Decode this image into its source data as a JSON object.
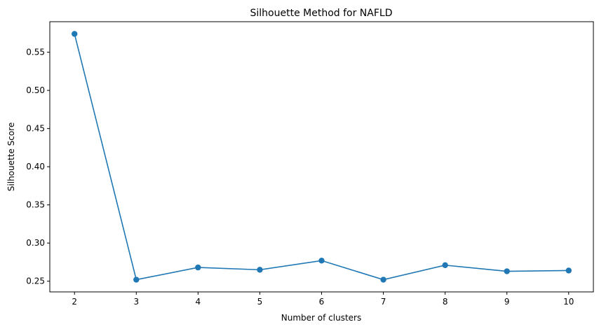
{
  "chart_data": {
    "type": "line",
    "title": "Silhouette Method for NAFLD",
    "xlabel": "Number of clusters",
    "ylabel": "Silhouette Score",
    "x": [
      2,
      3,
      4,
      5,
      6,
      7,
      8,
      9,
      10
    ],
    "series": [
      {
        "values": [
          0.574,
          0.252,
          0.268,
          0.265,
          0.277,
          0.252,
          0.271,
          0.263,
          0.264
        ],
        "color": "#1f77b4",
        "marker": "circle"
      }
    ],
    "xticks": [
      "2",
      "3",
      "4",
      "5",
      "6",
      "7",
      "8",
      "9",
      "10"
    ],
    "yticks": [
      "0.25",
      "0.30",
      "0.35",
      "0.40",
      "0.45",
      "0.50",
      "0.55"
    ],
    "xlim": [
      1.6,
      10.4
    ],
    "ylim": [
      0.236,
      0.59
    ],
    "grid": false,
    "legend": "none"
  }
}
